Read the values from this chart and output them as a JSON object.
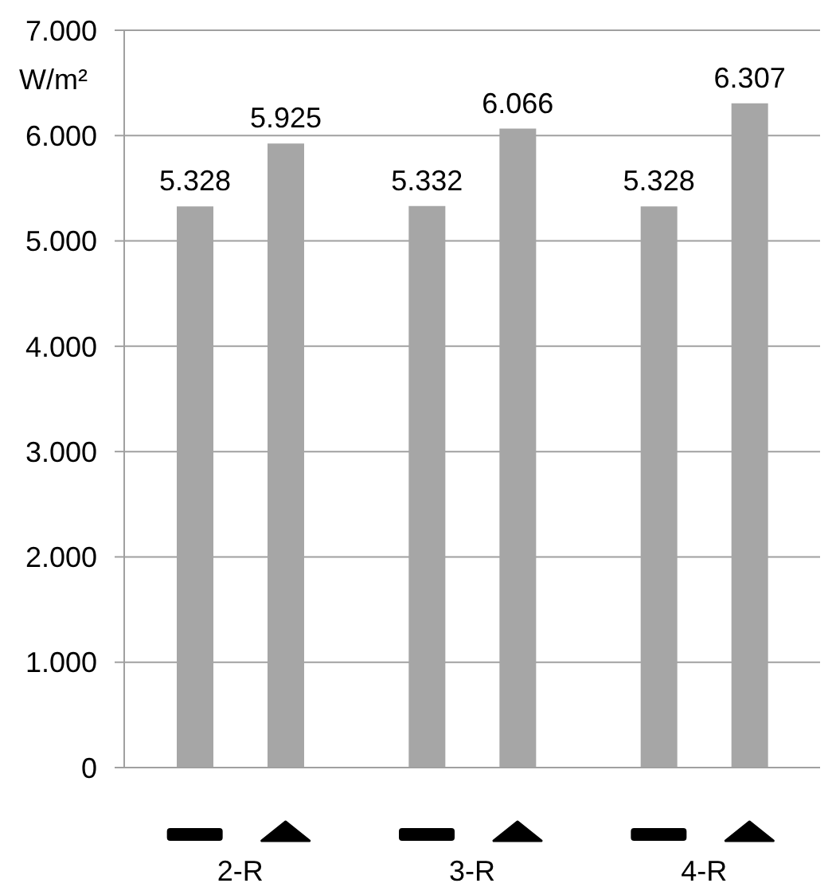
{
  "chart_data": {
    "type": "bar",
    "ylabel": "W/m²",
    "categories": [
      "2-R",
      "3-R",
      "4-R"
    ],
    "series": [
      {
        "color": "#a6a6a6",
        "values": [
          5328,
          5332,
          5328
        ],
        "value_labels": [
          "5.328",
          "5.332",
          "5.328"
        ]
      },
      {
        "color": "#a6a6a6",
        "values": [
          5925,
          6066,
          6307
        ],
        "value_labels": [
          "5.925",
          "6.066",
          "6.307"
        ]
      }
    ],
    "ylim": [
      0,
      7000
    ],
    "yticks": [
      0,
      {
        "value": 1000,
        "label": "1.000"
      },
      {
        "value": 2000,
        "label": "2.000"
      },
      {
        "value": 3000,
        "label": "3.000"
      },
      {
        "value": 4000,
        "label": "4.000"
      },
      {
        "value": 5000,
        "label": "5.000"
      },
      {
        "value": 6000,
        "label": "6.000"
      },
      {
        "value": 7000,
        "label": "7.000"
      }
    ],
    "grid": "y"
  }
}
